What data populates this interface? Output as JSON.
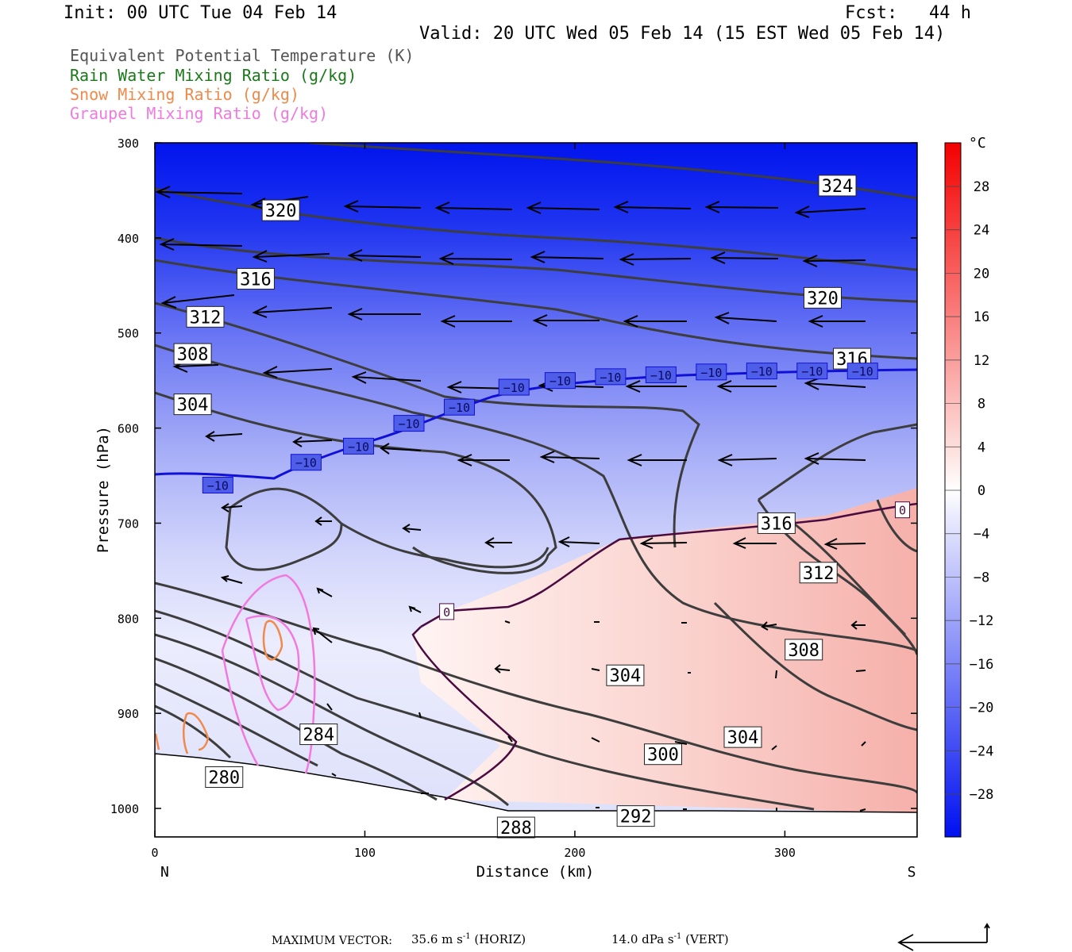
{
  "header": {
    "init": "Init: 00 UTC Tue 04 Feb 14",
    "fcst": "Fcst:   44 h",
    "valid": "Valid: 20 UTC Wed 05 Feb 14 (15 EST Wed 05 Feb 14)"
  },
  "fields": [
    {
      "label": "Equivalent Potential Temperature (K)",
      "color": "#555555"
    },
    {
      "label": "Rain Water Mixing Ratio (g/kg)",
      "color": "#1a7a1a"
    },
    {
      "label": "Snow Mixing Ratio (g/kg)",
      "color": "#f08a4b"
    },
    {
      "label": "Graupel Mixing Ratio (g/kg)",
      "color": "#f07ae0"
    }
  ],
  "chart_data": {
    "type": "heatmap",
    "title": "",
    "xlabel": "Distance (km)",
    "ylabel": "Pressure (hPa)",
    "xlim": [
      0,
      363
    ],
    "ylim": [
      1030,
      300
    ],
    "x_ticks": [
      0,
      100,
      200,
      300
    ],
    "y_ticks": [
      300,
      400,
      500,
      600,
      700,
      800,
      900,
      1000
    ],
    "end_labels": {
      "left": "N",
      "right": "S"
    },
    "colorbar": {
      "unit": "°C",
      "ticks": [
        28,
        24,
        20,
        16,
        12,
        8,
        4,
        0,
        -4,
        -8,
        -12,
        -16,
        -20,
        -24,
        -28
      ]
    },
    "theta_e_labels": [
      {
        "value": "324",
        "x": 325,
        "p": 345
      },
      {
        "value": "320",
        "x": 60,
        "p": 371
      },
      {
        "value": "316",
        "x": 48,
        "p": 443
      },
      {
        "value": "312",
        "x": 24,
        "p": 483
      },
      {
        "value": "308",
        "x": 18,
        "p": 522
      },
      {
        "value": "304",
        "x": 18,
        "p": 575
      },
      {
        "value": "320",
        "x": 318,
        "p": 463
      },
      {
        "value": "316",
        "x": 332,
        "p": 527
      },
      {
        "value": "316",
        "x": 296,
        "p": 700
      },
      {
        "value": "312",
        "x": 316,
        "p": 752
      },
      {
        "value": "308",
        "x": 309,
        "p": 833
      },
      {
        "value": "304",
        "x": 224,
        "p": 860
      },
      {
        "value": "304",
        "x": 280,
        "p": 925
      },
      {
        "value": "300",
        "x": 242,
        "p": 943
      },
      {
        "value": "292",
        "x": 229,
        "p": 1008
      },
      {
        "value": "288",
        "x": 172,
        "p": 1020
      },
      {
        "value": "284",
        "x": 78,
        "p": 922
      },
      {
        "value": "280",
        "x": 33,
        "p": 967
      }
    ],
    "temp_labels": [
      {
        "value": "-10",
        "x": 30,
        "p": 660
      },
      {
        "value": "-10",
        "x": 72,
        "p": 636
      },
      {
        "value": "-10",
        "x": 97,
        "p": 619
      },
      {
        "value": "-10",
        "x": 121,
        "p": 595
      },
      {
        "value": "-10",
        "x": 145,
        "p": 578
      },
      {
        "value": "-10",
        "x": 171,
        "p": 557
      },
      {
        "value": "-10",
        "x": 193,
        "p": 550
      },
      {
        "value": "-10",
        "x": 217,
        "p": 546
      },
      {
        "value": "-10",
        "x": 241,
        "p": 544
      },
      {
        "value": "-10",
        "x": 265,
        "p": 541
      },
      {
        "value": "-10",
        "x": 289,
        "p": 540
      },
      {
        "value": "-10",
        "x": 313,
        "p": 540
      },
      {
        "value": "-10",
        "x": 337,
        "p": 540
      },
      {
        "value": "0",
        "x": 139,
        "p": 793
      },
      {
        "value": "0",
        "x": 356,
        "p": 686
      }
    ],
    "footer": {
      "label": "MAXIMUM VECTOR:",
      "horiz": "35.6 m s",
      "horiz_unit": " (HORIZ)",
      "vert": "14.0 dPa s",
      "vert_unit": " (VERT)",
      "exp": "-1"
    }
  }
}
